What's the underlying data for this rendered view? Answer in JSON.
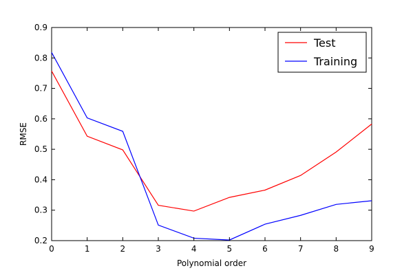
{
  "chart_data": {
    "type": "line",
    "title": "",
    "xlabel": "Polynomial order",
    "ylabel": "RMSE",
    "xlim": [
      0,
      9
    ],
    "ylim": [
      0.2,
      0.9
    ],
    "xticks": [
      "0",
      "1",
      "2",
      "3",
      "4",
      "5",
      "6",
      "7",
      "8",
      "9"
    ],
    "yticks": [
      "0.2",
      "0.3",
      "0.4",
      "0.5",
      "0.6",
      "0.7",
      "0.8",
      "0.9"
    ],
    "grid": false,
    "legend_position": "top-right",
    "x": [
      0,
      1,
      2,
      3,
      4,
      5,
      6,
      7,
      8,
      9
    ],
    "series": [
      {
        "name": "Test",
        "color": "#ff0000",
        "values": [
          0.757,
          0.543,
          0.498,
          0.316,
          0.297,
          0.342,
          0.366,
          0.414,
          0.491,
          0.583
        ]
      },
      {
        "name": "Training",
        "color": "#0000ff",
        "values": [
          0.818,
          0.603,
          0.559,
          0.251,
          0.208,
          0.202,
          0.254,
          0.283,
          0.319,
          0.331
        ]
      }
    ]
  }
}
